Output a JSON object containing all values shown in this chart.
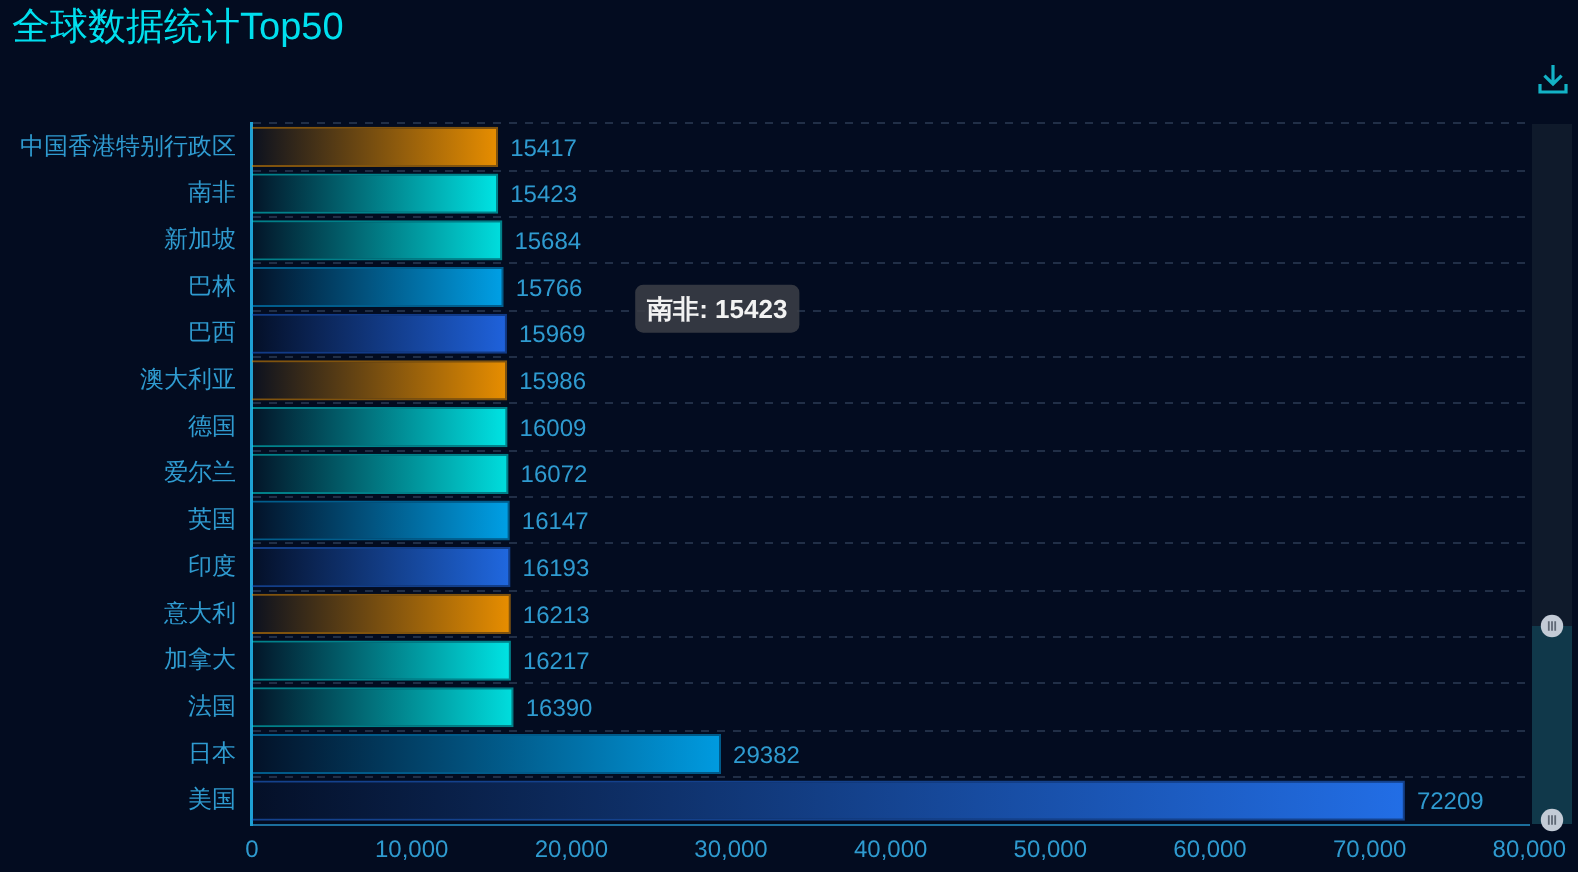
{
  "chart_data": {
    "type": "bar",
    "orientation": "horizontal",
    "title": "全球数据统计Top50",
    "categories": [
      "中国香港特别行政区",
      "南非",
      "新加坡",
      "巴林",
      "巴西",
      "澳大利亚",
      "德国",
      "爱尔兰",
      "英国",
      "印度",
      "意大利",
      "加拿大",
      "法国",
      "日本",
      "美国"
    ],
    "values": [
      15417,
      15423,
      15684,
      15766,
      15969,
      15986,
      16009,
      16072,
      16147,
      16193,
      16213,
      16217,
      16390,
      29382,
      72209
    ],
    "colors": [
      "#e88e00",
      "#00e4e4",
      "#00dede",
      "#00a0e6",
      "#1f62dc",
      "#e88e00",
      "#00e4e4",
      "#00dede",
      "#00a0e6",
      "#2068e0",
      "#e88e00",
      "#00e4e4",
      "#00dede",
      "#009be0",
      "#226ee6"
    ],
    "xlim": [
      0,
      80000
    ],
    "xticks": [
      0,
      {
        "value": 10000,
        "label": "10,000"
      },
      {
        "value": 20000,
        "label": "20,000"
      },
      {
        "value": 30000,
        "label": "30,000"
      },
      {
        "value": 40000,
        "label": "40,000"
      },
      {
        "value": 50000,
        "label": "50,000"
      },
      {
        "value": 60000,
        "label": "60,000"
      },
      {
        "value": 70000,
        "label": "70,000"
      },
      {
        "value": 80000,
        "label": "80,000"
      }
    ],
    "grid": "y",
    "data_labels": true,
    "annotations": [
      "南非: 15423"
    ]
  }
}
